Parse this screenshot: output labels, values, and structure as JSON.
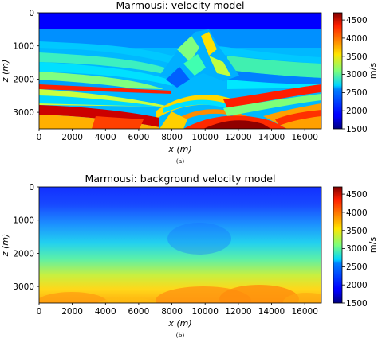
{
  "chart_data": [
    {
      "type": "heatmap",
      "title": "Marmousi: velocity model",
      "xlabel": "x (m)",
      "ylabel": "z (m)",
      "xlim": [
        0,
        17000
      ],
      "ylim": [
        3500,
        0
      ],
      "x_ticks": [
        "0",
        "2000",
        "4000",
        "6000",
        "8000",
        "10000",
        "12000",
        "14000",
        "16000"
      ],
      "y_ticks": [
        "0",
        "1000",
        "2000",
        "3000"
      ],
      "colorbar": {
        "label": "m/s",
        "range": [
          1500,
          4700
        ],
        "ticks": [
          "4500",
          "4000",
          "3500",
          "3000",
          "2500",
          "2000",
          "1500"
        ],
        "colormap": "jet"
      },
      "caption": "(a)"
    },
    {
      "type": "heatmap",
      "title": "Marmousi: background velocity model",
      "xlabel": "x (m)",
      "ylabel": "z (m)",
      "xlim": [
        0,
        17000
      ],
      "ylim": [
        3500,
        0
      ],
      "x_ticks": [
        "0",
        "2000",
        "4000",
        "6000",
        "8000",
        "10000",
        "12000",
        "14000",
        "16000"
      ],
      "y_ticks": [
        "0",
        "1000",
        "2000",
        "3000"
      ],
      "colorbar": {
        "label": "m/s",
        "range": [
          1500,
          4700
        ],
        "ticks": [
          "4500",
          "4000",
          "3500",
          "3000",
          "2500",
          "2000",
          "1500"
        ],
        "colormap": "jet"
      },
      "caption": "(b)"
    }
  ]
}
